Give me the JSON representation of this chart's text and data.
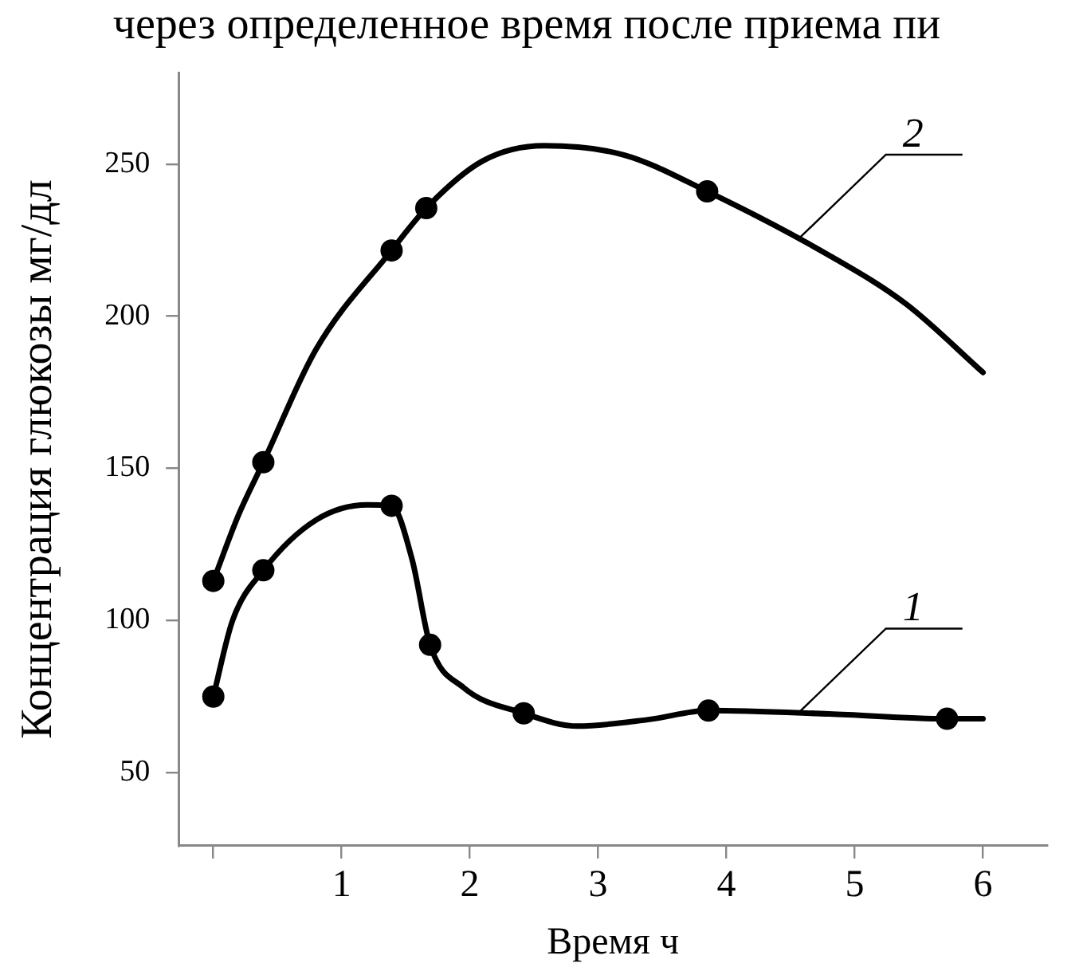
{
  "chart_data": {
    "type": "line",
    "title": "через определенное время после приема пи",
    "xlabel": "Время ч",
    "ylabel": "Концентрация глюкозы мг/дл",
    "xlim": [
      -0.27,
      6.5
    ],
    "ylim": [
      26,
      280
    ],
    "xticks": [
      {
        "value": 0,
        "label": null
      },
      1,
      2,
      3,
      4,
      5,
      6
    ],
    "yticks": [
      50,
      100,
      150,
      200,
      250
    ],
    "grid": false,
    "legend": false,
    "line_style": "solid",
    "series": [
      {
        "name": "1",
        "type": "line",
        "marker": "none",
        "color": "#000000",
        "x": [
          0,
          0.15,
          0.39,
          0.8,
          1.2,
          1.39,
          1.55,
          1.69,
          1.95,
          2.42,
          2.84,
          3.4,
          3.86,
          4.8,
          5.72,
          6
        ],
        "values": [
          75,
          100,
          116.5,
          133,
          138,
          137.7,
          120,
          92,
          78,
          69.5,
          65.3,
          67.5,
          70.4,
          69.3,
          67.7,
          67.7
        ]
      },
      {
        "name": "2",
        "type": "line",
        "marker": "none",
        "color": "#000000",
        "x": [
          0,
          0.2,
          0.39,
          0.8,
          1.39,
          1.66,
          2.1,
          2.58,
          3.2,
          3.85,
          4.8,
          5.4,
          6
        ],
        "values": [
          113,
          135,
          152,
          189,
          221.6,
          235.5,
          251,
          256,
          253,
          241,
          220,
          204,
          181.5
        ]
      },
      {
        "type": "scatter",
        "marker": "circle",
        "color": "#000000",
        "x": [
          0,
          0.39,
          1.39,
          1.69,
          2.42,
          3.86,
          5.72
        ],
        "values": [
          75,
          116.5,
          137.7,
          92,
          69.5,
          70.4,
          67.7
        ]
      },
      {
        "type": "scatter",
        "marker": "circle",
        "color": "#000000",
        "x": [
          0,
          0.39,
          1.39,
          1.66,
          3.85
        ],
        "values": [
          113,
          152,
          221.6,
          235.5,
          241
        ]
      }
    ]
  }
}
